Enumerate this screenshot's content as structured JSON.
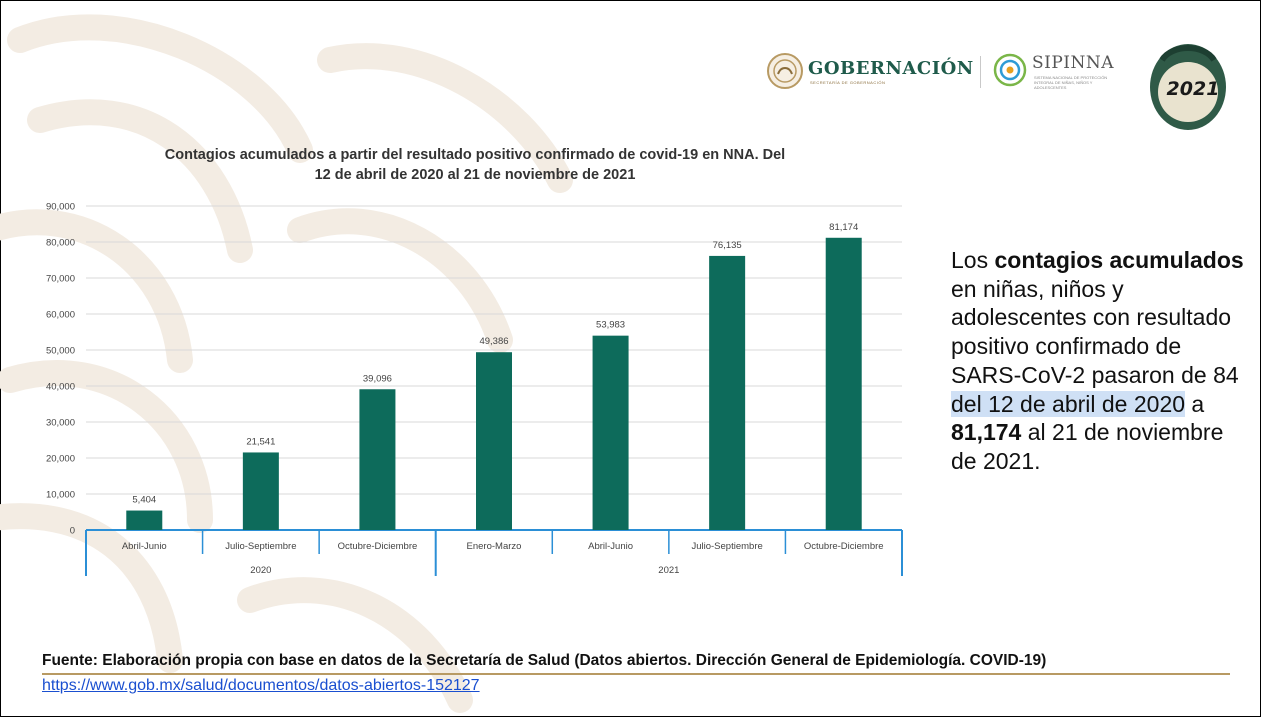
{
  "header": {
    "gobernacion": "GOBERNACIÓN",
    "gobernacion_sub": "SECRETARÍA DE GOBERNACIÓN",
    "sipinna": "SIPINNA",
    "sipinna_sub": "SISTEMA NACIONAL DE PROTECCIÓN INTEGRAL DE NIÑAS, NIÑOS Y ADOLESCENTES",
    "year_badge": "2021"
  },
  "chart_data": {
    "type": "bar",
    "title_line1": "Contagios acumulados a partir del resultado positivo confirmado de covid-19 en NNA. Del",
    "title_line2": "12 de abril de 2020 al 21 de noviembre de 2021",
    "categories": [
      "Abril-Junio",
      "Julio-Septiembre",
      "Octubre-Diciembre",
      "Enero-Marzo",
      "Abril-Junio",
      "Julio-Septiembre",
      "Octubre-Diciembre"
    ],
    "value_labels": [
      "5,404",
      "21,541",
      "39,096",
      "49,386",
      "53,983",
      "76,135",
      "81,174"
    ],
    "values": [
      5404,
      21541,
      39096,
      49386,
      53983,
      76135,
      81174
    ],
    "year_groups": [
      {
        "label": "2020",
        "count": 3
      },
      {
        "label": "2021",
        "count": 4
      }
    ],
    "y_ticks": [
      "0",
      "10,000",
      "20,000",
      "30,000",
      "40,000",
      "50,000",
      "60,000",
      "70,000",
      "80,000",
      "90,000"
    ],
    "ylim": [
      0,
      90000
    ],
    "grid": true,
    "bar_color": "#0d6b5b",
    "axis_color": "#2b8fd6"
  },
  "side_note": {
    "t1": "Los ",
    "b1": "contagios acumulados",
    "t2": " en niñas, niños y adolescentes con resultado positivo confirmado de SARS-CoV-2 pasaron de 84 ",
    "highlight": "del 12 de abril de 2020",
    "t3": " a ",
    "b2": "81,174",
    "t4": " al 21 de noviembre de 2021."
  },
  "footer": {
    "source": "Fuente: Elaboración propia con base en datos de la Secretaría de Salud (Datos abiertos. Dirección General de Epidemiología. COVID-19)",
    "url": "https://www.gob.mx/salud/documentos/datos-abiertos-152127"
  }
}
